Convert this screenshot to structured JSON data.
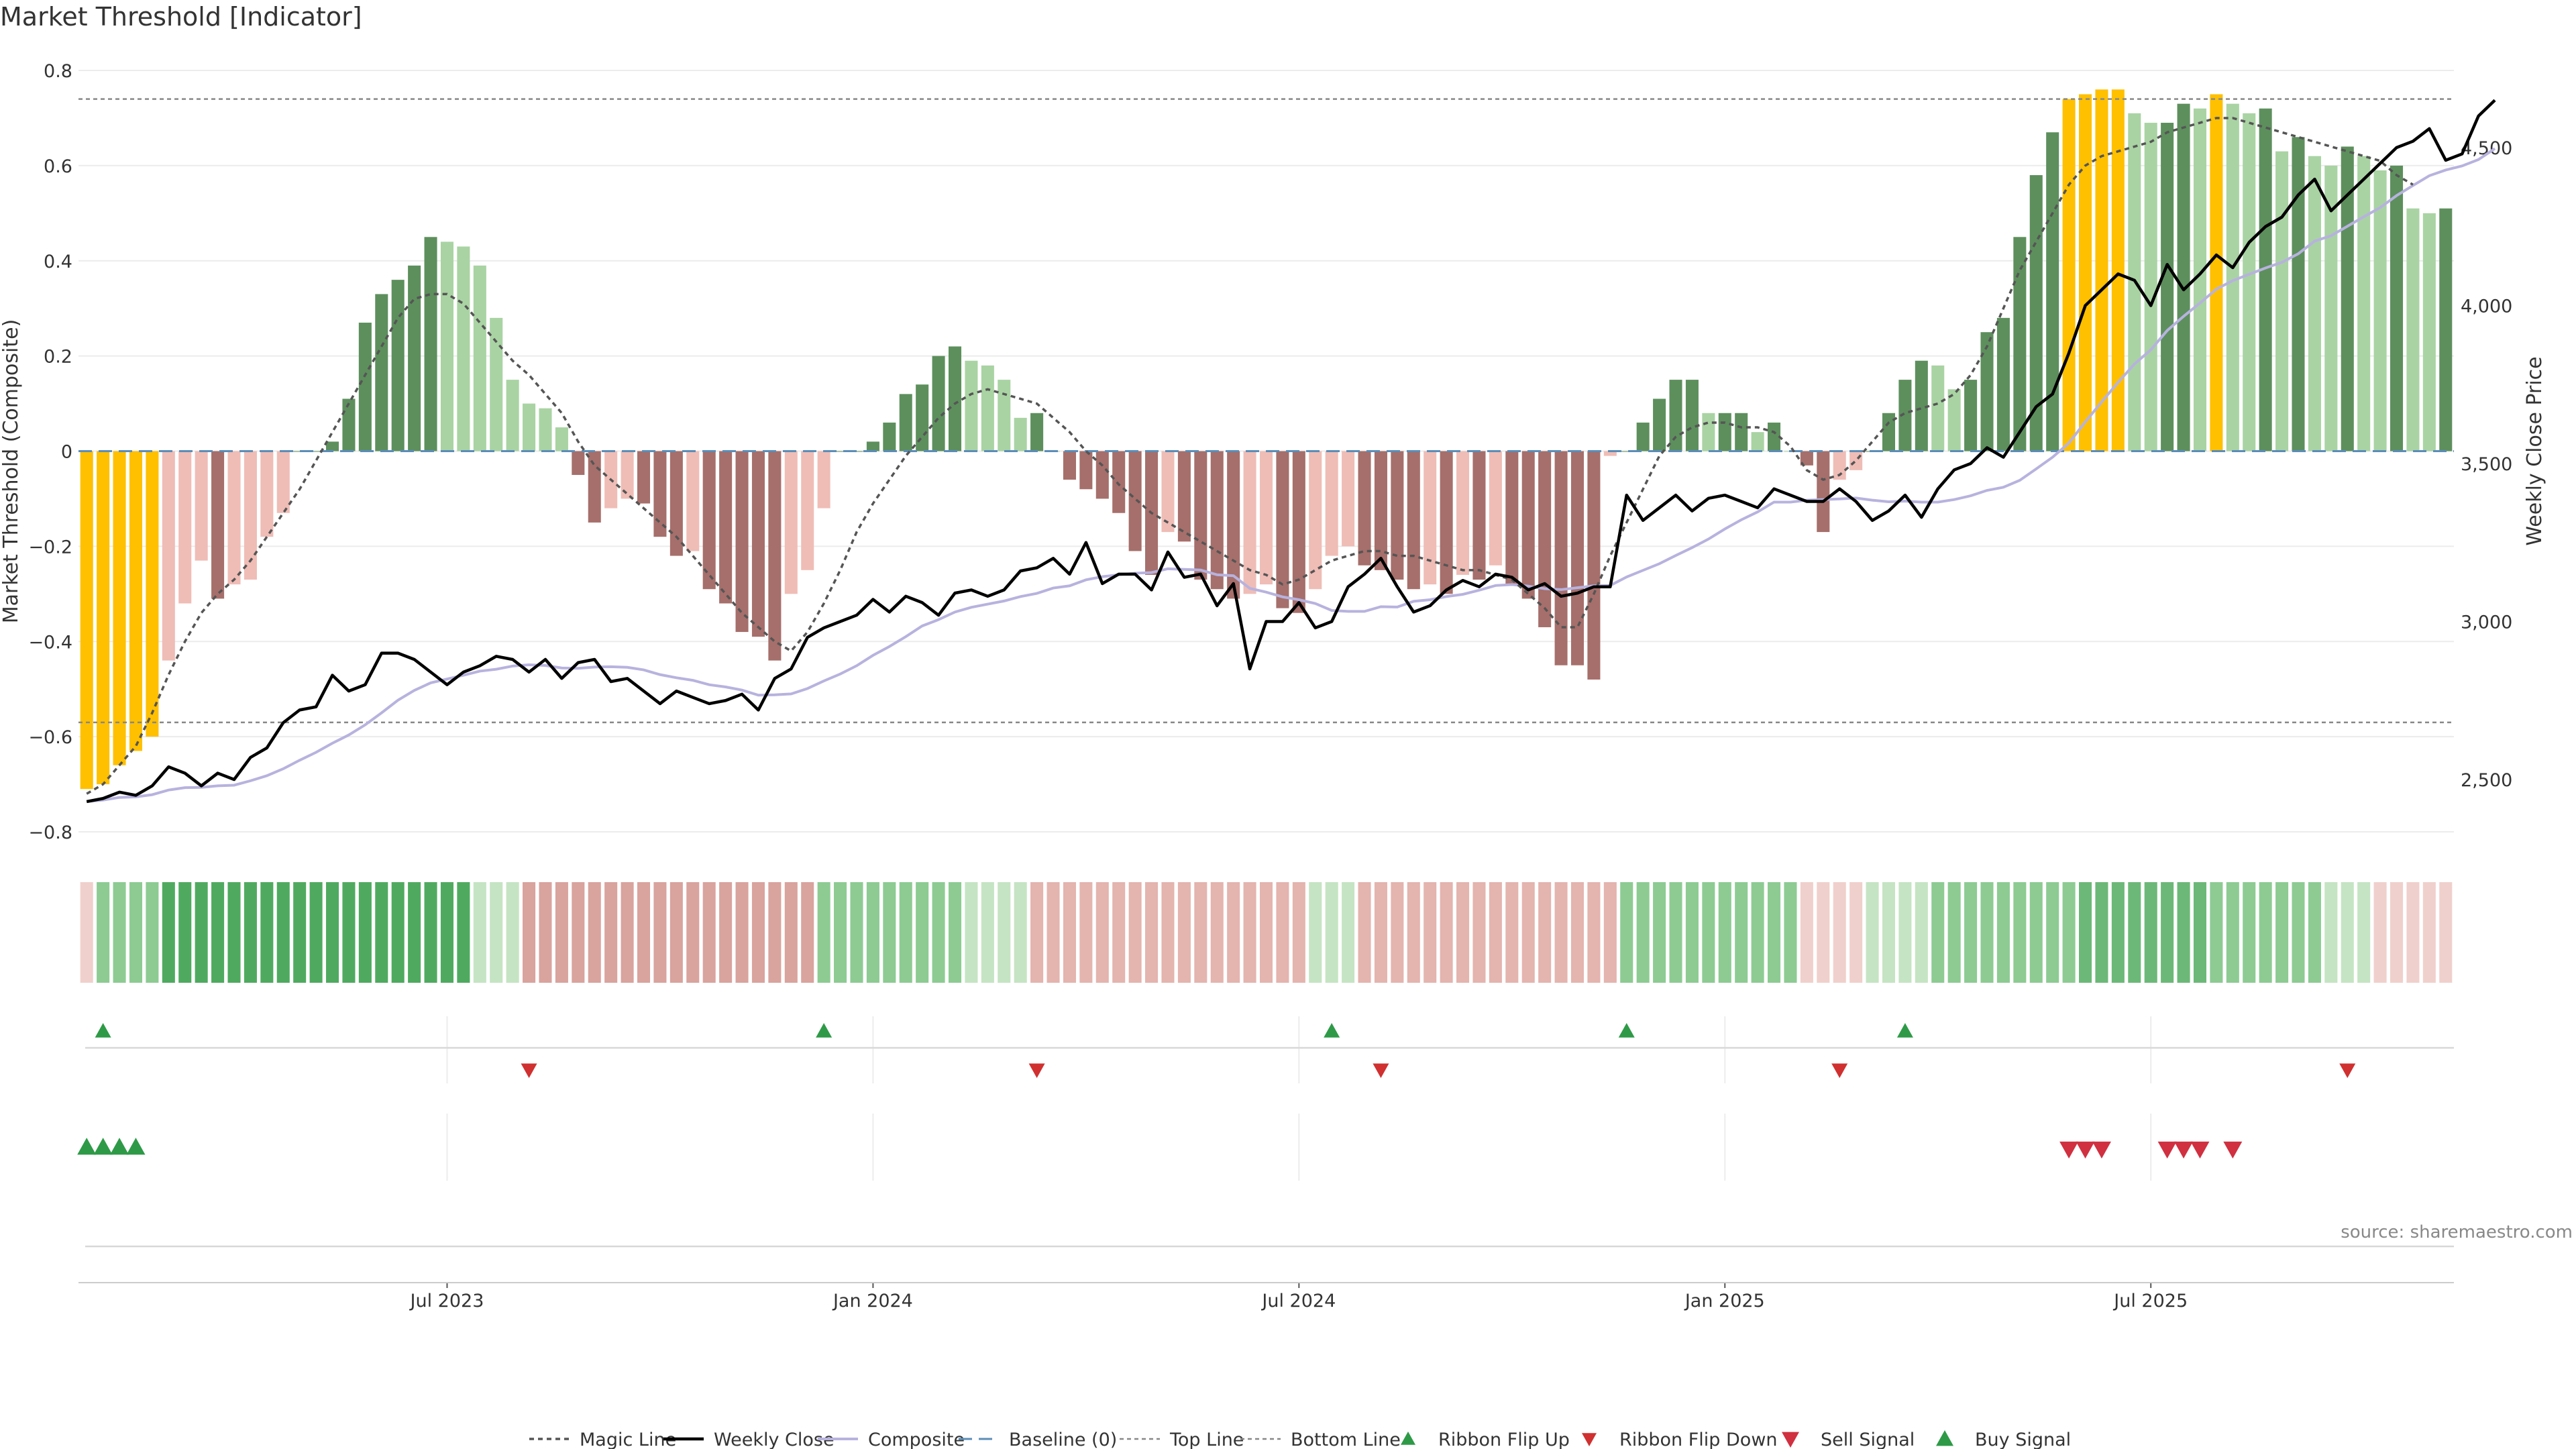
{
  "chart_data": {
    "type": "bar",
    "title": "Market Threshold [Indicator]",
    "source": "source: sharemaestro.com",
    "y_left": {
      "label": "Market Threshold (Composite)",
      "range": [
        -0.8,
        0.8
      ],
      "ticks": [
        0.8,
        0.6,
        0.4,
        0.2,
        0,
        -0.2,
        -0.4,
        -0.6,
        -0.8
      ],
      "tick_labels": [
        "0.8",
        "0.6",
        "0.4",
        "0.2",
        "0",
        "−0.2",
        "−0.4",
        "−0.6",
        "−0.8"
      ]
    },
    "y_right": {
      "label": "Weekly Close Price",
      "range": [
        2330,
        4720
      ],
      "ticks": [
        2500,
        3000,
        3500,
        4000,
        4500
      ],
      "tick_labels": [
        "2,500",
        "3,000",
        "3,500",
        "4,000",
        "4,500"
      ]
    },
    "x_axis": {
      "ticks": [
        {
          "index": 22,
          "label": "Jul 2023"
        },
        {
          "index": 48,
          "label": "Jan 2024"
        },
        {
          "index": 74,
          "label": "Jul 2024"
        },
        {
          "index": 100,
          "label": "Jan 2025"
        },
        {
          "index": 126,
          "label": "Jul 2025"
        }
      ]
    },
    "top_line": 0.74,
    "bottom_line": -0.57,
    "composite": [
      -0.71,
      -0.7,
      -0.66,
      -0.63,
      -0.6,
      -0.44,
      -0.32,
      -0.23,
      -0.31,
      -0.28,
      -0.27,
      -0.18,
      -0.13,
      0.0,
      0.0,
      0.02,
      0.11,
      0.27,
      0.33,
      0.36,
      0.39,
      0.45,
      0.44,
      0.43,
      0.39,
      0.28,
      0.15,
      0.1,
      0.09,
      0.05,
      -0.05,
      -0.15,
      -0.12,
      -0.1,
      -0.11,
      -0.18,
      -0.22,
      -0.21,
      -0.29,
      -0.32,
      -0.38,
      -0.39,
      -0.44,
      -0.3,
      -0.25,
      -0.12,
      0.0,
      0.0,
      0.02,
      0.06,
      0.12,
      0.14,
      0.2,
      0.22,
      0.19,
      0.18,
      0.15,
      0.07,
      0.08,
      0.0,
      -0.06,
      -0.08,
      -0.1,
      -0.13,
      -0.21,
      -0.26,
      -0.17,
      -0.19,
      -0.27,
      -0.29,
      -0.31,
      -0.3,
      -0.28,
      -0.33,
      -0.34,
      -0.29,
      -0.22,
      -0.2,
      -0.24,
      -0.25,
      -0.27,
      -0.29,
      -0.28,
      -0.3,
      -0.26,
      -0.27,
      -0.24,
      -0.28,
      -0.31,
      -0.37,
      -0.45,
      -0.45,
      -0.48,
      -0.01,
      0.0,
      0.06,
      0.11,
      0.15,
      0.15,
      0.08,
      0.08,
      0.08,
      0.04,
      0.06,
      0.0,
      -0.03,
      -0.17,
      -0.06,
      -0.04,
      0.0,
      0.08,
      0.15,
      0.19,
      0.18,
      0.13,
      0.15,
      0.25,
      0.28,
      0.45,
      0.58,
      0.67,
      0.74,
      0.75,
      0.76,
      0.76,
      0.71,
      0.69,
      0.69,
      0.73,
      0.72,
      0.75,
      0.73,
      0.71,
      0.72,
      0.63,
      0.66,
      0.62,
      0.6,
      0.64,
      0.62,
      0.59,
      0.6,
      0.51,
      0.5,
      0.51
    ],
    "magic_line": [
      -0.72,
      -0.7,
      -0.66,
      -0.62,
      -0.55,
      -0.47,
      -0.4,
      -0.34,
      -0.3,
      -0.27,
      -0.23,
      -0.18,
      -0.13,
      -0.08,
      -0.02,
      0.04,
      0.1,
      0.16,
      0.22,
      0.28,
      0.32,
      0.33,
      0.33,
      0.31,
      0.27,
      0.23,
      0.19,
      0.16,
      0.12,
      0.08,
      0.02,
      -0.03,
      -0.06,
      -0.09,
      -0.12,
      -0.15,
      -0.18,
      -0.22,
      -0.26,
      -0.3,
      -0.34,
      -0.37,
      -0.4,
      -0.42,
      -0.38,
      -0.32,
      -0.25,
      -0.17,
      -0.11,
      -0.06,
      -0.01,
      0.03,
      0.07,
      0.1,
      0.12,
      0.13,
      0.12,
      0.11,
      0.1,
      0.07,
      0.04,
      0.0,
      -0.03,
      -0.07,
      -0.1,
      -0.13,
      -0.15,
      -0.17,
      -0.19,
      -0.21,
      -0.23,
      -0.25,
      -0.26,
      -0.28,
      -0.27,
      -0.25,
      -0.23,
      -0.22,
      -0.21,
      -0.21,
      -0.22,
      -0.22,
      -0.23,
      -0.24,
      -0.25,
      -0.25,
      -0.26,
      -0.27,
      -0.3,
      -0.33,
      -0.37,
      -0.37,
      -0.3,
      -0.22,
      -0.15,
      -0.08,
      -0.01,
      0.03,
      0.05,
      0.06,
      0.06,
      0.05,
      0.05,
      0.04,
      0.01,
      -0.04,
      -0.06,
      -0.05,
      -0.02,
      0.02,
      0.06,
      0.08,
      0.09,
      0.1,
      0.12,
      0.16,
      0.22,
      0.3,
      0.38,
      0.44,
      0.5,
      0.56,
      0.6,
      0.62,
      0.63,
      0.64,
      0.65,
      0.67,
      0.68,
      0.69,
      0.7,
      0.7,
      0.69,
      0.68,
      0.67,
      0.66,
      0.65,
      0.64,
      0.63,
      0.62,
      0.61,
      0.58,
      0.56
    ],
    "series_weekly_close": [
      2430,
      2440,
      2460,
      2450,
      2480,
      2540,
      2520,
      2480,
      2520,
      2500,
      2570,
      2600,
      2680,
      2720,
      2730,
      2830,
      2780,
      2800,
      2900,
      2900,
      2880,
      2840,
      2800,
      2840,
      2860,
      2890,
      2880,
      2840,
      2880,
      2820,
      2870,
      2880,
      2810,
      2820,
      2780,
      2740,
      2780,
      2760,
      2740,
      2750,
      2770,
      2720,
      2820,
      2850,
      2950,
      2980,
      3000,
      3020,
      3070,
      3030,
      3080,
      3060,
      3020,
      3090,
      3100,
      3080,
      3100,
      3160,
      3170,
      3200,
      3150,
      3250,
      3120,
      3150,
      3150,
      3100,
      3220,
      3140,
      3150,
      3050,
      3120,
      2850,
      3000,
      3000,
      3060,
      2980,
      3000,
      3110,
      3150,
      3200,
      3110,
      3030,
      3050,
      3100,
      3130,
      3110,
      3150,
      3140,
      3100,
      3120,
      3080,
      3090,
      3110,
      3110,
      3400,
      3320,
      3360,
      3400,
      3350,
      3390,
      3400,
      3380,
      3360,
      3420,
      3400,
      3380,
      3380,
      3420,
      3380,
      3320,
      3350,
      3400,
      3330,
      3420,
      3480,
      3500,
      3550,
      3520,
      3600,
      3680,
      3720,
      3850,
      4000,
      4050,
      4100,
      4080,
      4000,
      4130,
      4050,
      4100,
      4160,
      4120,
      4200,
      4250,
      4280,
      4350,
      4400,
      4300,
      4350,
      4400,
      4450,
      4500,
      4520,
      4560,
      4460,
      4480,
      4600,
      4650
    ],
    "ribbon_segments": [
      {
        "from": 0,
        "to": 0,
        "level": -1
      },
      {
        "from": 1,
        "to": 4,
        "level": 2
      },
      {
        "from": 5,
        "to": 23,
        "level": 4
      },
      {
        "from": 24,
        "to": 26,
        "level": 1
      },
      {
        "from": 27,
        "to": 44,
        "level": -3
      },
      {
        "from": 45,
        "to": 53,
        "level": 2
      },
      {
        "from": 54,
        "to": 57,
        "level": 1
      },
      {
        "from": 58,
        "to": 74,
        "level": -2
      },
      {
        "from": 75,
        "to": 77,
        "level": 1
      },
      {
        "from": 78,
        "to": 93,
        "level": -2
      },
      {
        "from": 94,
        "to": 104,
        "level": 2
      },
      {
        "from": 105,
        "to": 108,
        "level": -1
      },
      {
        "from": 109,
        "to": 112,
        "level": 1
      },
      {
        "from": 113,
        "to": 121,
        "level": 2
      },
      {
        "from": 122,
        "to": 129,
        "level": 3
      },
      {
        "from": 130,
        "to": 136,
        "level": 2
      },
      {
        "from": 137,
        "to": 139,
        "level": 1
      },
      {
        "from": 140,
        "to": 144,
        "level": -1
      }
    ],
    "ribbon_flip_up": [
      1,
      45,
      76,
      94,
      111
    ],
    "ribbon_flip_down": [
      27,
      58,
      79,
      107,
      138
    ],
    "buy_signal": [
      0,
      1,
      2,
      3
    ],
    "sell_signal": [
      121,
      122,
      123,
      127,
      128,
      129,
      131
    ],
    "colors": {
      "gold": "#FFC000",
      "dark_green": "#5D8F5D",
      "light_green": "#A9D3A3",
      "dark_red": "#A66F6B",
      "light_red": "#EFBDB6",
      "weekly_close": "#000000",
      "composite": "#B7B2DE",
      "baseline": "#5B8DB8",
      "magic_line": "#555555"
    },
    "legend_position": "bottom-center",
    "legend": [
      {
        "key": "magic",
        "label": "Magic Line"
      },
      {
        "key": "close",
        "label": "Weekly Close"
      },
      {
        "key": "composite",
        "label": "Composite"
      },
      {
        "key": "baseline",
        "label": "Baseline (0)"
      },
      {
        "key": "top",
        "label": "Top Line"
      },
      {
        "key": "bottom",
        "label": "Bottom Line"
      },
      {
        "key": "flipup",
        "label": "Ribbon Flip Up"
      },
      {
        "key": "flipdown",
        "label": "Ribbon Flip Down"
      },
      {
        "key": "sell",
        "label": "Sell Signal"
      },
      {
        "key": "buy",
        "label": "Buy Signal"
      }
    ]
  }
}
